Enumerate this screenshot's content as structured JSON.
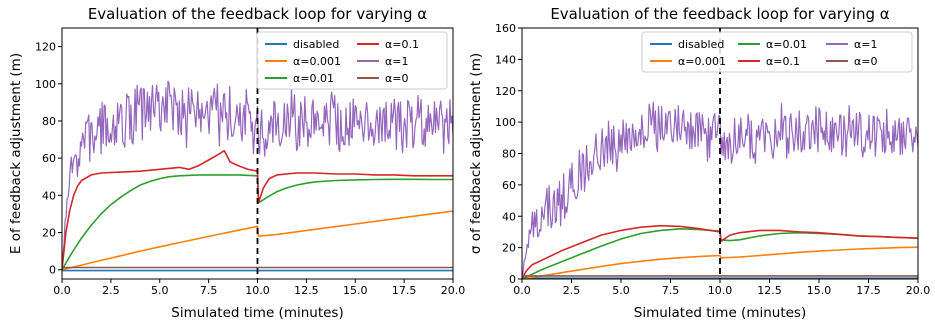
{
  "chart_data": [
    {
      "type": "line",
      "title": "Evaluation of the feedback loop for varying α",
      "xlabel": "Simulated time (minutes)",
      "ylabel": "E of feedback adjustment (m)",
      "xlim": [
        0,
        20
      ],
      "ylim": [
        -5,
        130
      ],
      "xticks": [
        "0.0",
        "2.5",
        "5.0",
        "7.5",
        "10.0",
        "12.5",
        "15.0",
        "17.5",
        "20.0"
      ],
      "yticks": [
        "0",
        "20",
        "40",
        "60",
        "80",
        "100",
        "120"
      ],
      "vline_x": 10,
      "legend": {
        "placement": "top-right",
        "columns": 2,
        "order": [
          "disabled",
          "α=0.001",
          "α=0.01",
          "α=0.1",
          "α=1",
          "α=0"
        ]
      },
      "series": [
        {
          "name": "disabled",
          "color": "#1f77b4",
          "points": [
            [
              0,
              -0.5
            ],
            [
              20,
              -0.5
            ]
          ]
        },
        {
          "name": "α=0.001",
          "color": "#ff7f0e",
          "points": [
            [
              0,
              0
            ],
            [
              1,
              2.5
            ],
            [
              2,
              5
            ],
            [
              3,
              7.5
            ],
            [
              4,
              10
            ],
            [
              5,
              12.3
            ],
            [
              6,
              14.6
            ],
            [
              7,
              16.8
            ],
            [
              8,
              19
            ],
            [
              9,
              21.2
            ],
            [
              10,
              23.3
            ],
            [
              10.05,
              18
            ],
            [
              11,
              19
            ],
            [
              12,
              20.4
            ],
            [
              13,
              21.8
            ],
            [
              14,
              23.2
            ],
            [
              15,
              24.6
            ],
            [
              16,
              26
            ],
            [
              17,
              27.4
            ],
            [
              18,
              28.8
            ],
            [
              19,
              30.1
            ],
            [
              20,
              31.5
            ]
          ]
        },
        {
          "name": "α=0.01",
          "color": "#2ca02c",
          "points": [
            [
              0,
              0
            ],
            [
              0.5,
              9
            ],
            [
              1,
              17
            ],
            [
              1.5,
              24
            ],
            [
              2,
              30
            ],
            [
              2.5,
              35
            ],
            [
              3,
              39
            ],
            [
              3.5,
              42.5
            ],
            [
              4,
              45.5
            ],
            [
              4.5,
              47.5
            ],
            [
              5,
              49
            ],
            [
              5.5,
              50
            ],
            [
              6,
              50.5
            ],
            [
              7,
              51
            ],
            [
              8,
              51
            ],
            [
              9,
              51
            ],
            [
              10,
              50.5
            ],
            [
              10.05,
              36
            ],
            [
              10.5,
              39
            ],
            [
              11,
              42
            ],
            [
              11.5,
              44
            ],
            [
              12,
              45.5
            ],
            [
              12.5,
              46.5
            ],
            [
              13,
              47.3
            ],
            [
              14,
              48
            ],
            [
              15,
              48.3
            ],
            [
              16,
              48.5
            ],
            [
              17,
              48.6
            ],
            [
              18,
              48.6
            ],
            [
              19,
              48.5
            ],
            [
              20,
              48.5
            ]
          ]
        },
        {
          "name": "α=0.1",
          "color": "#d62728",
          "points": [
            [
              0,
              0
            ],
            [
              0.2,
              20
            ],
            [
              0.4,
              32
            ],
            [
              0.6,
              40
            ],
            [
              0.8,
              45
            ],
            [
              1,
              48
            ],
            [
              1.5,
              51
            ],
            [
              2,
              52
            ],
            [
              3,
              52.5
            ],
            [
              4,
              53
            ],
            [
              5,
              54
            ],
            [
              6,
              55
            ],
            [
              6.5,
              54
            ],
            [
              7,
              56
            ],
            [
              7.5,
              59
            ],
            [
              8,
              62
            ],
            [
              8.3,
              64
            ],
            [
              8.6,
              58
            ],
            [
              9,
              56
            ],
            [
              9.5,
              54
            ],
            [
              10,
              53
            ],
            [
              10.05,
              36
            ],
            [
              10.3,
              44
            ],
            [
              10.6,
              49
            ],
            [
              11,
              51
            ],
            [
              12,
              52
            ],
            [
              13,
              52
            ],
            [
              14,
              51.5
            ],
            [
              15,
              51.5
            ],
            [
              16,
              51
            ],
            [
              17,
              51
            ],
            [
              18,
              50.5
            ],
            [
              19,
              50.5
            ],
            [
              20,
              50.5
            ]
          ]
        },
        {
          "name": "α=1",
          "color": "#9467bd",
          "points": [
            [
              0,
              0
            ],
            [
              0.2,
              28
            ],
            [
              0.4,
              48
            ],
            [
              0.7,
              60
            ],
            [
              1,
              68
            ],
            [
              1.5,
              72
            ],
            [
              2,
              76
            ],
            [
              3,
              80
            ],
            [
              4,
              85
            ],
            [
              5,
              88
            ],
            [
              5.5,
              88
            ],
            [
              6,
              85
            ],
            [
              7,
              84
            ],
            [
              8,
              82
            ],
            [
              9,
              81
            ],
            [
              10,
              78
            ],
            [
              10.05,
              70
            ],
            [
              11,
              80
            ],
            [
              12,
              81
            ],
            [
              13,
              80
            ],
            [
              14,
              79
            ],
            [
              15,
              80
            ],
            [
              16,
              79
            ],
            [
              17,
              80
            ],
            [
              18,
              79
            ],
            [
              19,
              80
            ],
            [
              20,
              80
            ]
          ],
          "noise_amp": 12,
          "seed": 7
        },
        {
          "name": "α=0",
          "color": "#8c564b",
          "points": [
            [
              0,
              1.2
            ],
            [
              20,
              1.2
            ]
          ]
        }
      ]
    },
    {
      "type": "line",
      "title": "Evaluation of the feedback loop for varying α",
      "xlabel": "Simulated time (minutes)",
      "ylabel": "σ of feedback adjustment (m)",
      "xlim": [
        0,
        20
      ],
      "ylim": [
        0,
        160
      ],
      "xticks": [
        "0.0",
        "2.5",
        "5.0",
        "7.5",
        "10.0",
        "12.5",
        "15.0",
        "17.5",
        "20.0"
      ],
      "yticks": [
        "0",
        "20",
        "40",
        "60",
        "80",
        "100",
        "120",
        "140",
        "160"
      ],
      "vline_x": 10,
      "legend": {
        "placement": "top-right",
        "columns": 3,
        "order": [
          "disabled",
          "α=0.001",
          "α=0.01",
          "α=0.1",
          "α=1",
          "α=0"
        ]
      },
      "series": [
        {
          "name": "disabled",
          "color": "#1f77b4",
          "points": [
            [
              0,
              0.5
            ],
            [
              20,
              0.5
            ]
          ]
        },
        {
          "name": "α=0.001",
          "color": "#ff7f0e",
          "points": [
            [
              0,
              0
            ],
            [
              1,
              2
            ],
            [
              2,
              4
            ],
            [
              3,
              6
            ],
            [
              4,
              8
            ],
            [
              5,
              9.8
            ],
            [
              6,
              11.3
            ],
            [
              7,
              12.6
            ],
            [
              8,
              13.6
            ],
            [
              9,
              14.4
            ],
            [
              10,
              15
            ],
            [
              10.05,
              13.5
            ],
            [
              11,
              14
            ],
            [
              12,
              15
            ],
            [
              13,
              16
            ],
            [
              14,
              17
            ],
            [
              15,
              17.8
            ],
            [
              16,
              18.5
            ],
            [
              17,
              19.1
            ],
            [
              18,
              19.6
            ],
            [
              19,
              20
            ],
            [
              20,
              20.3
            ]
          ]
        },
        {
          "name": "α=0.01",
          "color": "#2ca02c",
          "points": [
            [
              0,
              0
            ],
            [
              0.5,
              3
            ],
            [
              1,
              6
            ],
            [
              2,
              11
            ],
            [
              3,
              16
            ],
            [
              4,
              21
            ],
            [
              5,
              25.5
            ],
            [
              6,
              29
            ],
            [
              7,
              31
            ],
            [
              8,
              32
            ],
            [
              9,
              31.5
            ],
            [
              10,
              30.5
            ],
            [
              10.05,
              25
            ],
            [
              10.5,
              24.5
            ],
            [
              11,
              25
            ],
            [
              12,
              27.5
            ],
            [
              13,
              29
            ],
            [
              14,
              29.5
            ],
            [
              15,
              29
            ],
            [
              16,
              28.5
            ],
            [
              17,
              27.5
            ],
            [
              18,
              27
            ],
            [
              19,
              26.5
            ],
            [
              20,
              26
            ]
          ]
        },
        {
          "name": "α=0.1",
          "color": "#d62728",
          "points": [
            [
              0,
              0
            ],
            [
              0.2,
              5
            ],
            [
              0.5,
              9
            ],
            [
              1,
              12
            ],
            [
              2,
              18
            ],
            [
              3,
              23
            ],
            [
              4,
              28
            ],
            [
              5,
              31
            ],
            [
              6,
              33
            ],
            [
              7,
              34
            ],
            [
              8,
              33.5
            ],
            [
              9,
              32
            ],
            [
              10,
              30
            ],
            [
              10.05,
              24
            ],
            [
              10.5,
              28
            ],
            [
              11,
              29.5
            ],
            [
              12,
              31
            ],
            [
              13,
              31
            ],
            [
              14,
              30
            ],
            [
              15,
              29.5
            ],
            [
              16,
              28.5
            ],
            [
              17,
              27.5
            ],
            [
              18,
              27
            ],
            [
              19,
              26.5
            ],
            [
              20,
              26
            ]
          ]
        },
        {
          "name": "α=1",
          "color": "#9467bd",
          "points": [
            [
              0,
              0
            ],
            [
              0.2,
              18
            ],
            [
              0.5,
              32
            ],
            [
              1,
              38
            ],
            [
              1.5,
              43
            ],
            [
              2,
              50
            ],
            [
              2.5,
              60
            ],
            [
              3,
              70
            ],
            [
              3.5,
              76
            ],
            [
              4,
              82
            ],
            [
              5,
              88
            ],
            [
              6,
              95
            ],
            [
              7,
              98
            ],
            [
              8,
              97
            ],
            [
              9,
              95
            ],
            [
              10,
              92
            ],
            [
              10.05,
              85
            ],
            [
              11,
              88
            ],
            [
              12,
              90
            ],
            [
              13,
              92
            ],
            [
              14,
              93
            ],
            [
              15,
              92
            ],
            [
              16,
              91
            ],
            [
              17,
              93
            ],
            [
              18,
              92
            ],
            [
              19,
              91
            ],
            [
              20,
              92
            ]
          ],
          "noise_amp": 12,
          "seed": 13
        },
        {
          "name": "α=0",
          "color": "#8c564b",
          "points": [
            [
              0,
              2
            ],
            [
              20,
              2
            ]
          ]
        }
      ]
    }
  ]
}
